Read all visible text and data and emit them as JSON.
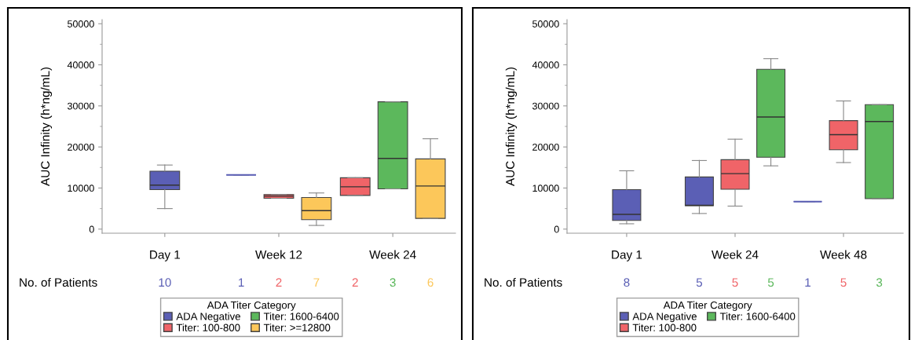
{
  "chart_data": [
    {
      "type": "box",
      "ylabel": "AUC Infinity (h*ng/mL)",
      "categories": [
        "Day 1",
        "Week 12",
        "Week 24"
      ],
      "ylim": [
        -1000,
        51000
      ],
      "yticks": [
        0,
        10000,
        20000,
        30000,
        40000,
        50000
      ],
      "legend": "bottom",
      "legend_title": "ADA Titer Category",
      "grid": false,
      "annotations": [
        "No. of Patients"
      ],
      "series": [
        {
          "name": "ADA Negative",
          "color": "#5b5fb5",
          "value_labels": [
            "10",
            "1",
            null
          ],
          "boxes": [
            {
              "low": 5000,
              "q1": 9600,
              "median": 10700,
              "q3": 14100,
              "high": 15600
            },
            {
              "low": 13200,
              "q1": 13200,
              "median": 13200,
              "q3": 13200,
              "high": 13200
            },
            null
          ]
        },
        {
          "name": "Titer: 100-800",
          "color": "#f06468",
          "value_labels": [
            null,
            "2",
            "2"
          ],
          "boxes": [
            null,
            {
              "low": 7500,
              "q1": 7500,
              "median": 8000,
              "q3": 8400,
              "high": 8400
            },
            {
              "low": 8200,
              "q1": 8200,
              "median": 10300,
              "q3": 12500,
              "high": 12500
            }
          ]
        },
        {
          "name": "Titer: 1600-6400",
          "color": "#5cb85c",
          "value_labels": [
            null,
            null,
            "3"
          ],
          "boxes": [
            null,
            null,
            {
              "low": 9800,
              "q1": 9800,
              "median": 17200,
              "q3": 31000,
              "high": 31000
            }
          ]
        },
        {
          "name": "Titer: >=12800",
          "color": "#fcc75a",
          "value_labels": [
            null,
            "7",
            "6"
          ],
          "boxes": [
            null,
            {
              "low": 900,
              "q1": 2300,
              "median": 4500,
              "q3": 7700,
              "high": 8800
            },
            {
              "low": 2600,
              "q1": 2600,
              "median": 10500,
              "q3": 17100,
              "high": 22000
            }
          ]
        }
      ]
    },
    {
      "type": "box",
      "ylabel": "AUC Infinity (h*ng/mL)",
      "categories": [
        "Day 1",
        "Week 24",
        "Week 48"
      ],
      "ylim": [
        -1000,
        51000
      ],
      "yticks": [
        0,
        10000,
        20000,
        30000,
        40000,
        50000
      ],
      "legend": "bottom",
      "legend_title": "ADA Titer Category",
      "grid": false,
      "annotations": [
        "No. of Patients"
      ],
      "series": [
        {
          "name": "ADA Negative",
          "color": "#5b5fb5",
          "value_labels": [
            "8",
            "5",
            "1"
          ],
          "boxes": [
            {
              "low": 1300,
              "q1": 2100,
              "median": 3600,
              "q3": 9600,
              "high": 14200
            },
            {
              "low": 3800,
              "q1": 5700,
              "median": 5800,
              "q3": 12700,
              "high": 16700
            },
            {
              "low": 6700,
              "q1": 6700,
              "median": 6700,
              "q3": 6700,
              "high": 6700
            }
          ]
        },
        {
          "name": "Titer: 100-800",
          "color": "#f06468",
          "value_labels": [
            null,
            "5",
            "5"
          ],
          "boxes": [
            null,
            {
              "low": 5600,
              "q1": 9700,
              "median": 13500,
              "q3": 16900,
              "high": 21900
            },
            {
              "low": 16200,
              "q1": 19300,
              "median": 23000,
              "q3": 26400,
              "high": 31200
            }
          ]
        },
        {
          "name": "Titer: 1600-6400",
          "color": "#5cb85c",
          "value_labels": [
            null,
            "5",
            "3"
          ],
          "boxes": [
            null,
            {
              "low": 15400,
              "q1": 17500,
              "median": 27300,
              "q3": 38900,
              "high": 41500
            },
            {
              "low": 7400,
              "q1": 7400,
              "median": 26200,
              "q3": 30300,
              "high": 30300
            }
          ]
        }
      ]
    }
  ]
}
